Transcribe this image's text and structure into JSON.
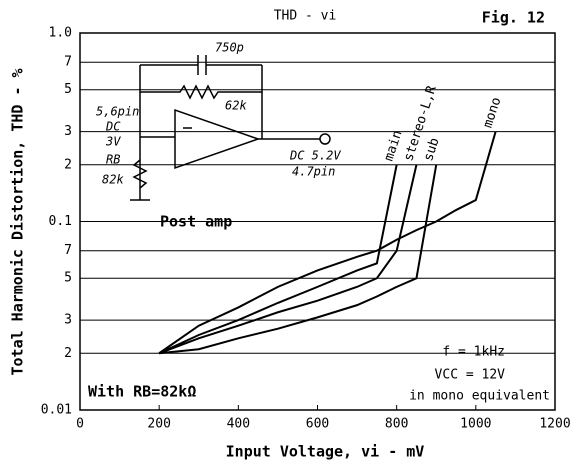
{
  "chart_data": {
    "type": "line",
    "title": "THD - vi",
    "subtitle": "Fig. 12",
    "x_label": "Input Voltage, vi - mV",
    "y_label": "Total Harmonic Distortion, THD - %",
    "x": [
      200,
      300,
      400,
      500,
      600,
      700,
      750,
      800,
      850,
      900,
      950,
      1000,
      1050
    ],
    "series": [
      {
        "name": "main",
        "color": "#000000",
        "values": [
          0.02,
          0.025,
          0.03,
          0.037,
          0.045,
          0.055,
          0.06,
          0.2,
          null,
          null,
          null,
          null,
          null
        ]
      },
      {
        "name": "stereo-L,R",
        "color": "#000000",
        "values": [
          0.02,
          0.024,
          0.028,
          0.033,
          0.038,
          0.045,
          0.05,
          0.07,
          0.2,
          null,
          null,
          null,
          null
        ]
      },
      {
        "name": "sub",
        "color": "#000000",
        "values": [
          0.02,
          0.021,
          0.024,
          0.027,
          0.031,
          0.036,
          0.04,
          0.045,
          0.05,
          0.2,
          null,
          null,
          null
        ]
      },
      {
        "name": "mono",
        "color": "#000000",
        "values": [
          0.02,
          0.028,
          0.035,
          0.045,
          0.055,
          0.065,
          0.07,
          0.08,
          0.09,
          0.1,
          0.115,
          0.13,
          0.3
        ]
      }
    ],
    "xlim": [
      0,
      1200
    ],
    "xticks": [
      0,
      200,
      400,
      600,
      800,
      1000,
      1200
    ],
    "ylim": [
      0.01,
      1.0
    ],
    "log_y": true,
    "yticks": [
      {
        "value": 1.0,
        "label": "1.0"
      },
      {
        "value": 0.7,
        "label": "7"
      },
      {
        "value": 0.5,
        "label": "5"
      },
      {
        "value": 0.3,
        "label": "3"
      },
      {
        "value": 0.2,
        "label": "2"
      },
      0.1,
      {
        "value": 0.07,
        "label": "7"
      },
      {
        "value": 0.05,
        "label": "5"
      },
      {
        "value": 0.03,
        "label": "3"
      },
      {
        "value": 0.02,
        "label": "2"
      },
      0.01
    ],
    "grid": "y",
    "annotations": [
      "f = 1kHz",
      "VCC = 12V",
      "With RB=82kΩ",
      "in mono equivalent",
      "Post amp",
      "750p",
      "62k",
      "5,6pin",
      "DC",
      "3V",
      "RB",
      "82k",
      "DC 5.2V",
      "4.7pin"
    ]
  }
}
